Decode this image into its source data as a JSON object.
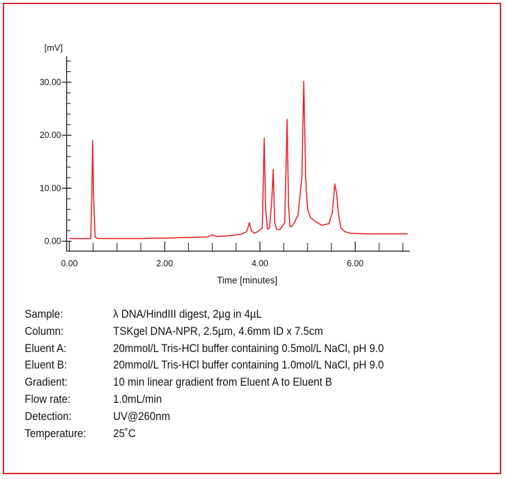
{
  "chart_data": {
    "type": "line",
    "title": "",
    "xlabel": "Time [minutes]",
    "ylabel": "[mV]",
    "xlim": [
      0,
      7.1
    ],
    "ylim": [
      -1,
      35
    ],
    "x_ticks": [
      "0.00",
      "2.00",
      "4.00",
      "6.00"
    ],
    "x_tick_values": [
      0,
      2,
      4,
      6
    ],
    "y_ticks": [
      "0.00",
      "10.00",
      "20.00",
      "30.00"
    ],
    "y_tick_values": [
      0,
      10,
      20,
      30
    ],
    "line_color": "#e8232a",
    "series": [
      {
        "x": [
          0,
          0.45,
          0.47,
          0.49,
          0.51,
          0.54,
          0.6,
          1.0,
          1.5,
          2.0,
          2.5,
          2.9,
          3.0,
          3.1,
          3.3,
          3.6,
          3.72,
          3.78,
          3.82,
          3.88,
          3.95,
          4.05,
          4.09,
          4.12,
          4.16,
          4.2,
          4.25,
          4.28,
          4.31,
          4.35,
          4.42,
          4.52,
          4.57,
          4.6,
          4.63,
          4.67,
          4.72,
          4.8,
          4.88,
          4.92,
          4.96,
          5.0,
          5.06,
          5.15,
          5.3,
          5.45,
          5.52,
          5.57,
          5.61,
          5.65,
          5.7,
          5.78,
          5.9,
          6.2,
          7.1
        ],
        "y": [
          0.5,
          0.5,
          8,
          19,
          8,
          0.8,
          0.5,
          0.5,
          0.5,
          0.6,
          0.7,
          0.8,
          1.2,
          0.9,
          1.0,
          1.3,
          1.8,
          3.5,
          2.0,
          1.5,
          1.8,
          2.5,
          19.5,
          6,
          2.3,
          2.5,
          8,
          13.5,
          3.5,
          2.2,
          2.2,
          3.5,
          23,
          7,
          2.8,
          2.8,
          3.5,
          5.0,
          12,
          30.2,
          12,
          6,
          4.5,
          3.8,
          3.0,
          3.3,
          5.5,
          10.8,
          9,
          5,
          2.5,
          1.8,
          1.5,
          1.4,
          1.4
        ]
      }
    ]
  },
  "conditions": [
    {
      "key": "Sample:",
      "value": "λ DNA/HindIII digest, 2µg in 4µL"
    },
    {
      "key": "Column:",
      "value": "TSKgel DNA-NPR, 2.5µm, 4.6mm ID x 7.5cm"
    },
    {
      "key": "Eluent A:",
      "value": "20mmol/L Tris-HCl buffer containing 0.5mol/L NaCl, pH 9.0"
    },
    {
      "key": "Eluent B:",
      "value": "20mmol/L Tris-HCl buffer containing 1.0mol/L NaCl, pH 9.0"
    },
    {
      "key": "Gradient:",
      "value": "10 min linear gradient from Eluent A to Eluent B"
    },
    {
      "key": "Flow rate:",
      "value": "1.0mL/min"
    },
    {
      "key": "Detection:",
      "value": "UV@260nm"
    },
    {
      "key": "Temperature:",
      "value": "25˚C"
    }
  ],
  "colors": {
    "frame": "#d9252e",
    "trace": "#e8232a"
  }
}
